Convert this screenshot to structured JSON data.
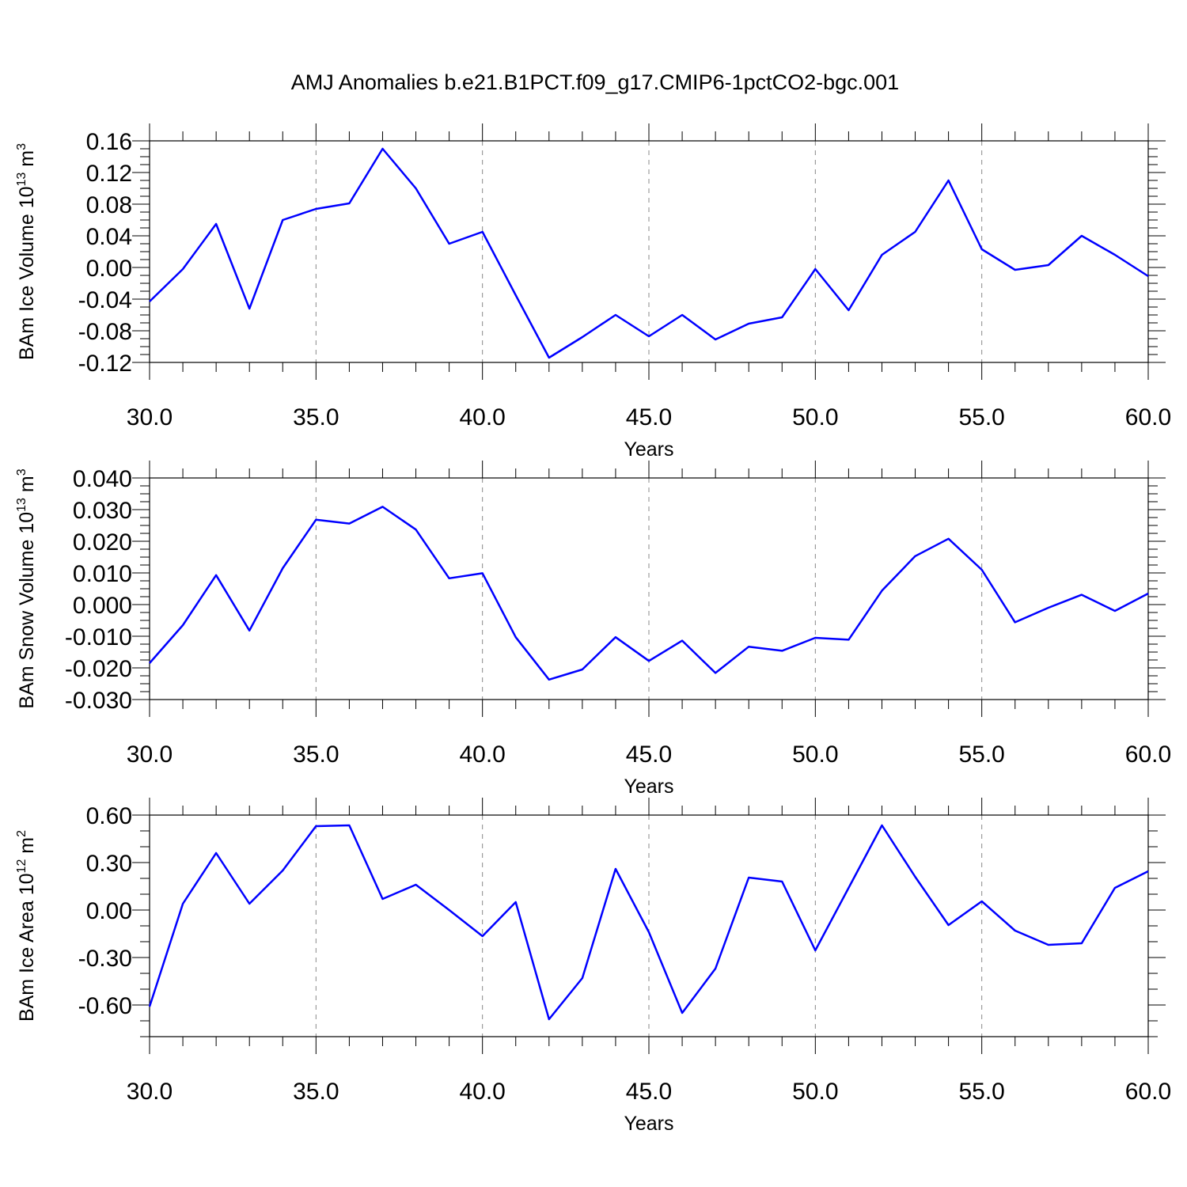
{
  "title": "AMJ Anomalies b.e21.B1PCT.f09_g17.CMIP6-1pctCO2-bgc.001",
  "colors": {
    "line": "#0000ff",
    "frame": "#000000",
    "grid": "#888888"
  },
  "chart_data": [
    {
      "type": "line",
      "ylabel": {
        "base": "BAm Ice Volume 10",
        "exp": "13",
        "unit": " m",
        "unit_exp": "3"
      },
      "xlabel": "Years",
      "xlim": [
        30,
        60
      ],
      "ylim": [
        -0.12,
        0.16
      ],
      "xticks": [
        "30.0",
        "35.0",
        "40.0",
        "45.0",
        "50.0",
        "55.0",
        "60.0"
      ],
      "yticks": [
        "0.16",
        "0.12",
        "0.08",
        "0.04",
        "0.00",
        "-0.04",
        "-0.08",
        "-0.12"
      ],
      "grid": "vertical dashed",
      "x": [
        30,
        31,
        32,
        33,
        34,
        35,
        36,
        37,
        38,
        39,
        40,
        41,
        42,
        43,
        44,
        45,
        46,
        47,
        48,
        49,
        50,
        51,
        52,
        53,
        54,
        55,
        56,
        57,
        58,
        59,
        60
      ],
      "values": [
        -0.043,
        -0.002,
        0.055,
        -0.052,
        0.06,
        0.074,
        0.081,
        0.15,
        0.1,
        0.03,
        0.045,
        -0.035,
        -0.114,
        -0.088,
        -0.06,
        -0.087,
        -0.06,
        -0.091,
        -0.071,
        -0.063,
        -0.002,
        -0.054,
        0.016,
        0.045,
        0.11,
        0.023,
        -0.003,
        0.003,
        0.04,
        0.016,
        -0.011
      ]
    },
    {
      "type": "line",
      "ylabel": {
        "base": "BAm Snow Volume 10",
        "exp": "13",
        "unit": " m",
        "unit_exp": "3"
      },
      "xlabel": "Years",
      "xlim": [
        30,
        60
      ],
      "ylim": [
        -0.03,
        0.04
      ],
      "xticks": [
        "30.0",
        "35.0",
        "40.0",
        "45.0",
        "50.0",
        "55.0",
        "60.0"
      ],
      "yticks": [
        "0.040",
        "0.030",
        "0.020",
        "0.010",
        "0.000",
        "-0.010",
        "-0.020",
        "-0.030"
      ],
      "grid": "vertical dashed",
      "x": [
        30,
        31,
        32,
        33,
        34,
        35,
        36,
        37,
        38,
        39,
        40,
        41,
        42,
        43,
        44,
        45,
        46,
        47,
        48,
        49,
        50,
        51,
        52,
        53,
        54,
        55,
        56,
        57,
        58,
        59,
        60
      ],
      "values": [
        -0.0185,
        -0.0065,
        0.0093,
        -0.0082,
        0.0115,
        0.0268,
        0.0256,
        0.0309,
        0.0237,
        0.0083,
        0.0099,
        -0.0103,
        -0.0237,
        -0.0205,
        -0.0103,
        -0.0178,
        -0.0114,
        -0.0216,
        -0.0133,
        -0.0146,
        -0.0105,
        -0.0111,
        0.0044,
        0.0153,
        0.0208,
        0.011,
        -0.0056,
        -0.001,
        0.0031,
        -0.002,
        0.0035
      ]
    },
    {
      "type": "line",
      "ylabel": {
        "base": "BAm Ice Area 10",
        "exp": "12",
        "unit": " m",
        "unit_exp": "2"
      },
      "xlabel": "Years",
      "xlim": [
        30,
        60
      ],
      "ylim": [
        -0.8,
        0.6
      ],
      "xticks": [
        "30.0",
        "35.0",
        "40.0",
        "45.0",
        "50.0",
        "55.0",
        "60.0"
      ],
      "yticks": [
        "0.60",
        "0.30",
        "0.00",
        "-0.30",
        "-0.60"
      ],
      "grid": "vertical dashed",
      "x": [
        30,
        31,
        32,
        33,
        34,
        35,
        36,
        37,
        38,
        39,
        40,
        41,
        42,
        43,
        44,
        45,
        46,
        47,
        48,
        49,
        50,
        51,
        52,
        53,
        54,
        55,
        56,
        57,
        58,
        59,
        60
      ],
      "values": [
        -0.61,
        0.04,
        0.36,
        0.04,
        0.25,
        0.53,
        0.535,
        0.07,
        0.16,
        0.0,
        -0.165,
        0.05,
        -0.69,
        -0.43,
        0.26,
        -0.14,
        -0.65,
        -0.37,
        0.205,
        0.18,
        -0.255,
        0.14,
        0.535,
        0.21,
        -0.095,
        0.055,
        -0.13,
        -0.22,
        -0.21,
        0.14,
        0.245
      ]
    }
  ]
}
